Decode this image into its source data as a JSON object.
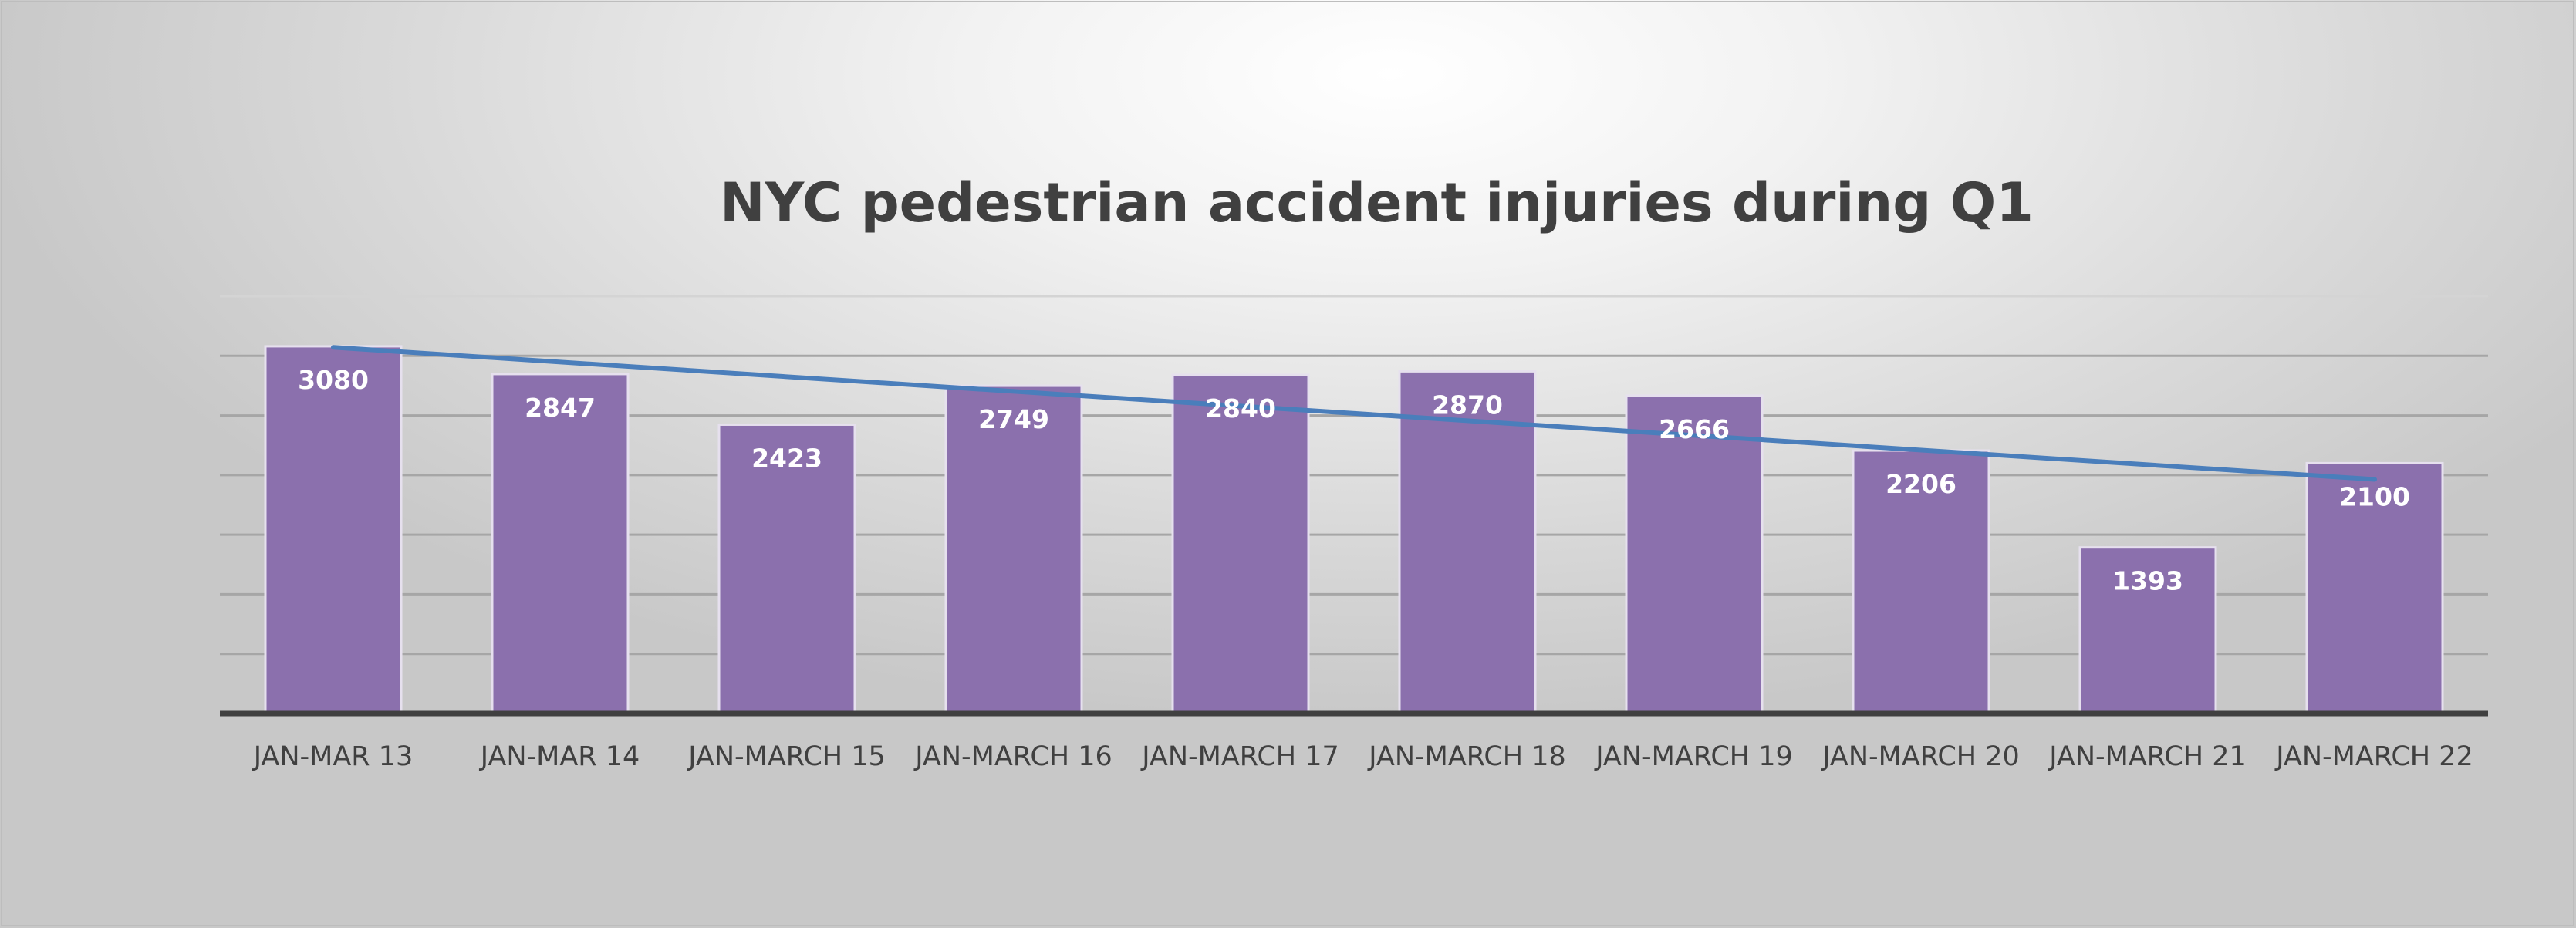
{
  "chart_data": {
    "type": "bar",
    "title": "NYC pedestrian accident injuries during Q1",
    "xlabel": "",
    "ylabel": "",
    "categories": [
      "JAN-MAR 13",
      "JAN-MAR 14",
      "JAN-MARCH 15",
      "JAN-MARCH 16",
      "JAN-MARCH 17",
      "JAN-MARCH 18",
      "JAN-MARCH 19",
      "JAN-MARCH 20",
      "JAN-MARCH 21",
      "JAN-MARCH 22"
    ],
    "values": [
      3080,
      2847,
      2423,
      2749,
      2840,
      2870,
      2666,
      2206,
      1393,
      2100
    ],
    "ylim": [
      0,
      3500
    ],
    "grid": true,
    "legend": "none",
    "trendline": "linear",
    "colors": {
      "bar": "#8b70ad",
      "bar_edge": "#e6e0ee",
      "trendline": "#4a7ebb",
      "gridline": "#a6a6a6",
      "axis": "#404040",
      "title": "#404040"
    }
  }
}
